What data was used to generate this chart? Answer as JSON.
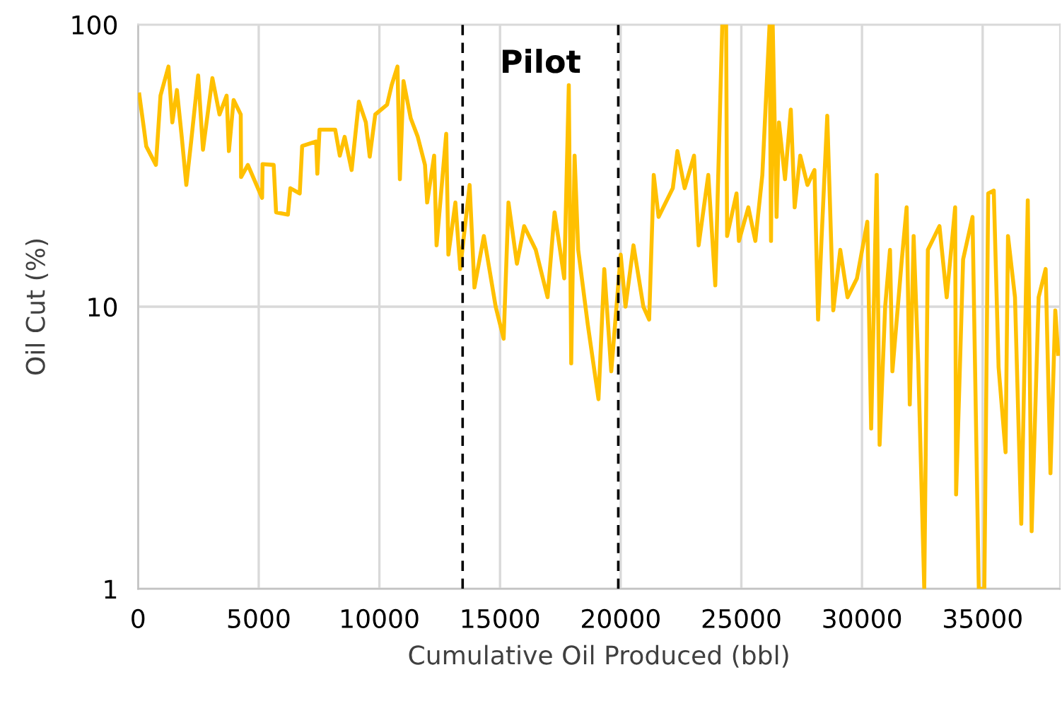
{
  "chart_data": {
    "type": "line",
    "xlabel": "Cumulative Oil Produced (bbl)",
    "ylabel": "Oil Cut (%)",
    "annotations": [
      "Pilot"
    ],
    "xlim": [
      0,
      38200
    ],
    "xticks": [
      0,
      5000,
      10000,
      15000,
      20000,
      25000,
      30000,
      35000
    ],
    "ylim": [
      1,
      100
    ],
    "yticks": [
      1,
      10,
      100
    ],
    "log": "y",
    "grid": true,
    "legend": false,
    "marker": "none",
    "line_style": "solid",
    "ref_lines": [
      {
        "axis": "x",
        "value": 13450,
        "color": "#000000",
        "line_style": "dashed"
      },
      {
        "axis": "x",
        "value": 19900,
        "color": "#000000",
        "line_style": "dashed"
      }
    ],
    "series": [
      {
        "color": "#ffc000",
        "x": [
          50,
          240,
          340,
          740,
          930,
          1260,
          1420,
          1610,
          1810,
          2000,
          2200,
          2490,
          2690,
          3080,
          3375,
          3670,
          3765,
          3960,
          4255,
          4270,
          4550,
          5140,
          5160,
          5620,
          5720,
          6210,
          6310,
          6700,
          6800,
          7380,
          7430,
          7520,
          8170,
          8360,
          8560,
          8850,
          9150,
          9440,
          9600,
          9830,
          10320,
          10510,
          10750,
          10850,
          11000,
          11300,
          11590,
          11890,
          11980,
          12270,
          12370,
          12770,
          12860,
          13150,
          13350,
          13740,
          13940,
          14330,
          14820,
          15150,
          15350,
          15700,
          16000,
          16480,
          16970,
          17260,
          17660,
          17850,
          17950,
          18090,
          18240,
          18640,
          19080,
          19320,
          19610,
          20000,
          20200,
          20530,
          20940,
          21180,
          21370,
          21570,
          22160,
          22350,
          22650,
          23040,
          23230,
          23630,
          23920,
          24210,
          24370,
          24410,
          24800,
          24900,
          25290,
          25580,
          25870,
          26170,
          26230,
          26300,
          26460,
          26560,
          26810,
          27050,
          27210,
          27440,
          27740,
          28030,
          28180,
          28320,
          28560,
          28810,
          29100,
          29400,
          29790,
          30220,
          30380,
          30610,
          30730,
          30960,
          31160,
          31260,
          31650,
          31850,
          31980,
          32140,
          32330,
          32580,
          32730,
          33210,
          33510,
          33860,
          33900,
          34190,
          34580,
          34840,
          35070,
          35230,
          35460,
          35660,
          35950,
          36050,
          36340,
          36600,
          36870,
          37030,
          37320,
          37610,
          37810,
          38010,
          38130
        ],
        "values": [
          56.5,
          43,
          37,
          31.8,
          56,
          71,
          45,
          58.6,
          40,
          27,
          38.5,
          66,
          36,
          64.6,
          48,
          56,
          35.6,
          54,
          48,
          28.8,
          31.8,
          24.3,
          32,
          31.8,
          21.6,
          21.2,
          26.3,
          25.2,
          37.1,
          38.5,
          29.6,
          42.4,
          42.4,
          34.3,
          40,
          30.5,
          53.3,
          45,
          34,
          48,
          52,
          61,
          71,
          28.3,
          63,
          46.5,
          40,
          31.8,
          23.4,
          34.3,
          16.5,
          41,
          15.3,
          23.4,
          13.6,
          27,
          11.7,
          17.8,
          10,
          7.7,
          23.4,
          14.2,
          19.3,
          15.9,
          10.8,
          21.6,
          12.6,
          61,
          6.3,
          34.3,
          15.9,
          8.6,
          4.7,
          13.6,
          5.9,
          15.3,
          10,
          16.5,
          10,
          9,
          29.3,
          20.8,
          26.3,
          35.6,
          26.3,
          34.3,
          16.5,
          29.3,
          11.9,
          100,
          100,
          17.8,
          25.2,
          17.1,
          22.5,
          17.1,
          29.3,
          100,
          17.1,
          100,
          20.8,
          45,
          28.3,
          50,
          22.5,
          34.3,
          27,
          30.5,
          9,
          17.1,
          47.5,
          9.7,
          15.9,
          10.8,
          12.6,
          20,
          3.7,
          29.3,
          3.24,
          10,
          15.9,
          5.9,
          14.7,
          22.5,
          4.5,
          17.8,
          6.3,
          1.0,
          15.9,
          19.3,
          10.8,
          22.5,
          2.16,
          14.7,
          20.8,
          1.0,
          1.0,
          25.2,
          25.8,
          6.1,
          3.05,
          17.8,
          10.8,
          1.7,
          23.8,
          1.6,
          10.8,
          13.6,
          2.57,
          9.7,
          6.8
        ]
      }
    ]
  }
}
